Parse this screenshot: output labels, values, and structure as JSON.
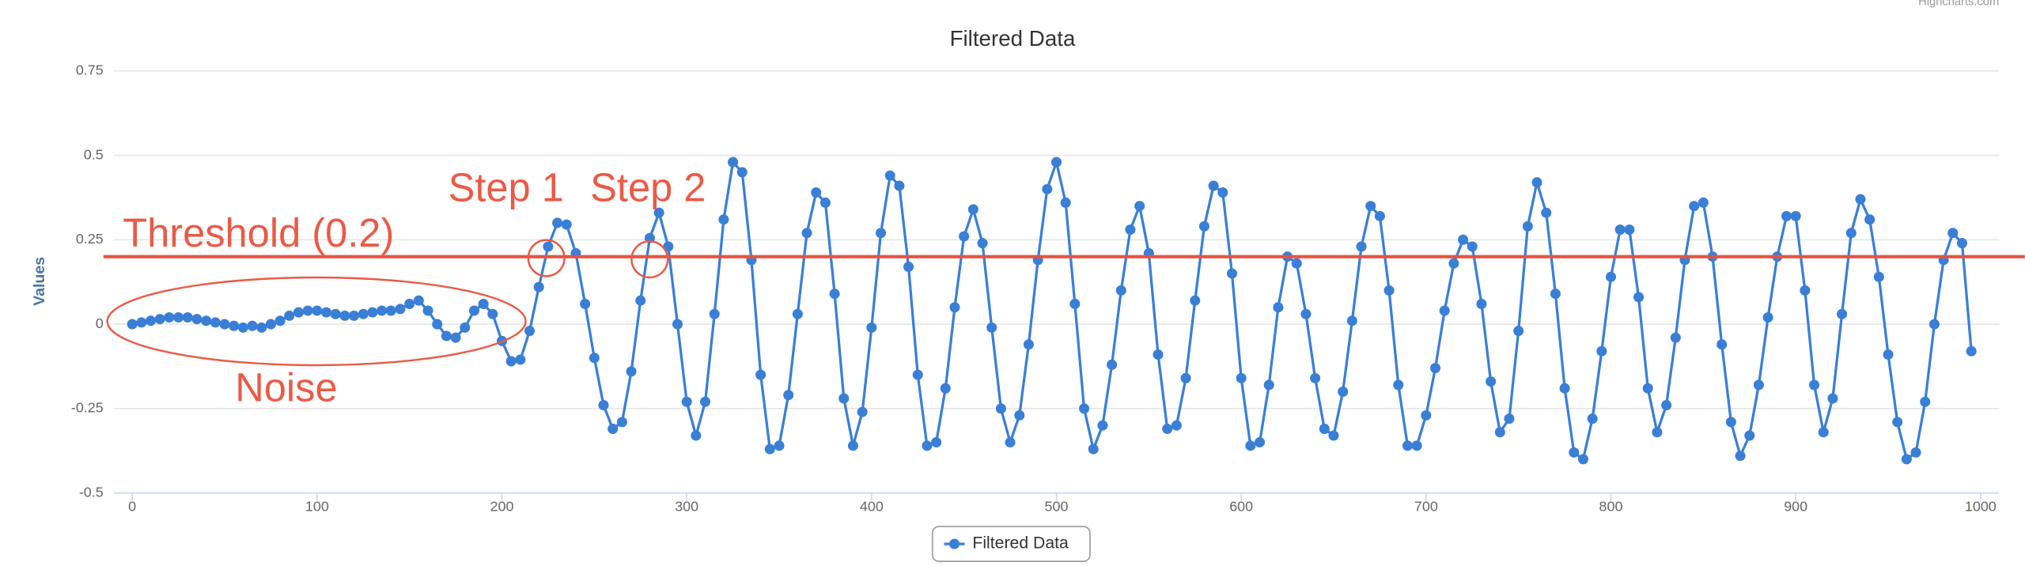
{
  "chart_data": {
    "type": "line",
    "title": "Filtered Data",
    "credits": "Highcharts.com",
    "y_axis_label": "Values",
    "legend": "bottom",
    "grid": true,
    "xlim": [
      -10,
      1010
    ],
    "xticks": [
      0,
      100,
      200,
      300,
      400,
      500,
      600,
      700,
      800,
      900,
      1000
    ],
    "ylim": [
      -0.5,
      0.75
    ],
    "yticks": [
      -0.5,
      -0.25,
      0,
      0.25,
      0.5,
      0.75
    ],
    "threshold_line": {
      "value": 0.2,
      "color": "#e8523f"
    },
    "annotations": [
      "Threshold (0.2)",
      "Step 1",
      "Step 2",
      "Noise"
    ],
    "x": [
      0,
      5,
      10,
      15,
      20,
      25,
      30,
      35,
      40,
      45,
      50,
      55,
      60,
      65,
      70,
      75,
      80,
      85,
      90,
      95,
      100,
      105,
      110,
      115,
      120,
      125,
      130,
      135,
      140,
      145,
      150,
      155,
      160,
      165,
      170,
      175,
      180,
      185,
      190,
      195,
      200,
      205,
      210,
      215,
      220,
      225,
      230,
      235,
      240,
      245,
      250,
      255,
      260,
      265,
      270,
      275,
      280,
      285,
      290,
      295,
      300,
      305,
      310,
      315,
      320,
      325,
      330,
      335,
      340,
      345,
      350,
      355,
      360,
      365,
      370,
      375,
      380,
      385,
      390,
      395,
      400,
      405,
      410,
      415,
      420,
      425,
      430,
      435,
      440,
      445,
      450,
      455,
      460,
      465,
      470,
      475,
      480,
      485,
      490,
      495,
      500,
      505,
      510,
      515,
      520,
      525,
      530,
      535,
      540,
      545,
      550,
      555,
      560,
      565,
      570,
      575,
      580,
      585,
      590,
      595,
      600,
      605,
      610,
      615,
      620,
      625,
      630,
      635,
      640,
      645,
      650,
      655,
      660,
      665,
      670,
      675,
      680,
      685,
      690,
      695,
      700,
      705,
      710,
      715,
      720,
      725,
      730,
      735,
      740,
      745,
      750,
      755,
      760,
      765,
      770,
      775,
      780,
      785,
      790,
      795,
      800,
      805,
      810,
      815,
      820,
      825,
      830,
      835,
      840,
      845,
      850,
      855,
      860,
      865,
      870,
      875,
      880,
      885,
      890,
      895,
      900,
      905,
      910,
      915,
      920,
      925,
      930,
      935,
      940,
      945,
      950,
      955,
      960,
      965,
      970,
      975,
      980,
      985,
      990,
      995
    ],
    "series": [
      {
        "name": "Filtered Data",
        "color": "#3a7fd6",
        "values": [
          0,
          0.005,
          0.01,
          0.015,
          0.02,
          0.02,
          0.02,
          0.015,
          0.01,
          0.005,
          0,
          -0.005,
          -0.01,
          -0.005,
          -0.01,
          0,
          0.01,
          0.025,
          0.035,
          0.04,
          0.04,
          0.035,
          0.03,
          0.025,
          0.025,
          0.03,
          0.035,
          0.04,
          0.04,
          0.045,
          0.06,
          0.07,
          0.04,
          0,
          -0.035,
          -0.04,
          -0.01,
          0.04,
          0.06,
          0.03,
          -0.05,
          -0.11,
          -0.105,
          -0.02,
          0.11,
          0.23,
          0.3,
          0.295,
          0.21,
          0.06,
          -0.1,
          -0.24,
          -0.31,
          -0.29,
          -0.14,
          0.07,
          0.255,
          0.33,
          0.23,
          0,
          -0.23,
          -0.33,
          -0.23,
          0.03,
          0.31,
          0.48,
          0.45,
          0.19,
          -0.15,
          -0.37,
          -0.36,
          -0.21,
          0.03,
          0.27,
          0.39,
          0.36,
          0.09,
          -0.22,
          -0.36,
          -0.26,
          -0.01,
          0.27,
          0.44,
          0.41,
          0.17,
          -0.15,
          -0.36,
          -0.35,
          -0.19,
          0.05,
          0.26,
          0.34,
          0.24,
          -0.01,
          -0.25,
          -0.35,
          -0.27,
          -0.06,
          0.19,
          0.4,
          0.48,
          0.36,
          0.06,
          -0.25,
          -0.37,
          -0.3,
          -0.12,
          0.1,
          0.28,
          0.35,
          0.21,
          -0.09,
          -0.31,
          -0.3,
          -0.16,
          0.07,
          0.29,
          0.41,
          0.39,
          0.15,
          -0.16,
          -0.36,
          -0.35,
          -0.18,
          0.05,
          0.2,
          0.18,
          0.03,
          -0.16,
          -0.31,
          -0.33,
          -0.2,
          0.01,
          0.23,
          0.35,
          0.32,
          0.1,
          -0.18,
          -0.36,
          -0.36,
          -0.27,
          -0.13,
          0.04,
          0.18,
          0.25,
          0.23,
          0.06,
          -0.17,
          -0.32,
          -0.28,
          -0.02,
          0.29,
          0.42,
          0.33,
          0.09,
          -0.19,
          -0.38,
          -0.4,
          -0.28,
          -0.08,
          0.14,
          0.28,
          0.28,
          0.08,
          -0.19,
          -0.32,
          -0.24,
          -0.04,
          0.19,
          0.35,
          0.36,
          0.2,
          -0.06,
          -0.29,
          -0.39,
          -0.33,
          -0.18,
          0.02,
          0.2,
          0.32,
          0.32,
          0.1,
          -0.18,
          -0.32,
          -0.22,
          0.03,
          0.27,
          0.37,
          0.31,
          0.14,
          -0.09,
          -0.29,
          -0.4,
          -0.38,
          -0.23,
          0,
          0.19,
          0.27,
          0.24,
          -0.08
        ]
      }
    ]
  }
}
